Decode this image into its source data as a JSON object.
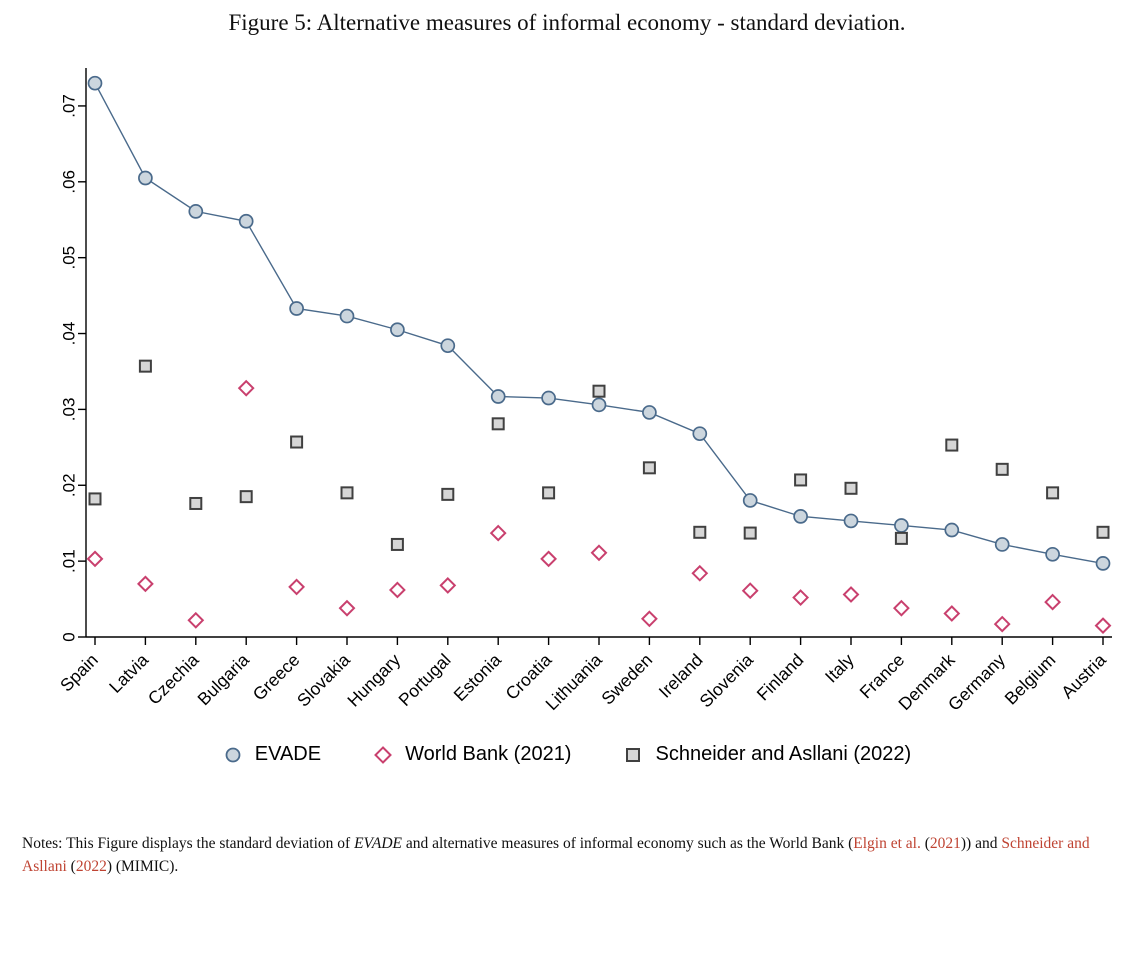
{
  "title": "Figure 5: Alternative measures of informal economy - standard deviation.",
  "colors": {
    "citation": "#bf4332",
    "axis": "#000000",
    "evade_line": "#4a6a8b",
    "evade_fill": "#ccd6de",
    "worldbank_stroke": "#c9406e",
    "worldbank_fill": "#ffffff",
    "schneider_stroke": "#404040",
    "schneider_fill": "#d6d6d6"
  },
  "chart_data": {
    "type": "line",
    "title": "",
    "xlabel": "",
    "ylabel": "",
    "grid": false,
    "legend_position": "bottom",
    "ylim": [
      0,
      0.075
    ],
    "yticks": [
      0,
      0.01,
      0.02,
      0.03,
      0.04,
      0.05,
      0.06,
      0.07
    ],
    "ytick_labels": [
      "0",
      ".01",
      ".02",
      ".03",
      ".04",
      ".05",
      ".06",
      ".07"
    ],
    "categories": [
      "Spain",
      "Latvia",
      "Czechia",
      "Bulgaria",
      "Greece",
      "Slovakia",
      "Hungary",
      "Portugal",
      "Estonia",
      "Croatia",
      "Lithuania",
      "Sweden",
      "Ireland",
      "Slovenia",
      "Finland",
      "Italy",
      "France",
      "Denmark",
      "Germany",
      "Belgium",
      "Austria"
    ],
    "series": [
      {
        "name": "EVADE",
        "marker": "circle",
        "line": true,
        "color": "#4a6a8b",
        "fill": "#ccd6de",
        "values": [
          0.073,
          0.0605,
          0.0561,
          0.0548,
          0.0433,
          0.0423,
          0.0405,
          0.0384,
          0.0317,
          0.0315,
          0.0306,
          0.0296,
          0.0268,
          0.018,
          0.0159,
          0.0153,
          0.0147,
          0.0141,
          0.0122,
          0.0109,
          0.0097
        ]
      },
      {
        "name": "World Bank (2021)",
        "marker": "diamond",
        "line": false,
        "color": "#c9406e",
        "fill": "#ffffff",
        "values": [
          0.0103,
          0.007,
          0.0022,
          0.0328,
          0.0066,
          0.0038,
          0.0062,
          0.0068,
          0.0137,
          0.0103,
          0.0111,
          0.0024,
          0.0084,
          0.0061,
          0.0052,
          0.0056,
          0.0038,
          0.0031,
          0.0017,
          0.0046,
          0.0015
        ]
      },
      {
        "name": "Schneider and Asllani (2022)",
        "marker": "square",
        "line": false,
        "color": "#404040",
        "fill": "#d6d6d6",
        "values": [
          0.0182,
          0.0357,
          0.0176,
          0.0185,
          0.0257,
          0.019,
          0.0122,
          0.0188,
          0.0281,
          0.019,
          0.0324,
          0.0223,
          0.0138,
          0.0137,
          0.0207,
          0.0196,
          0.013,
          0.0253,
          0.0221,
          0.019,
          0.0138
        ]
      }
    ]
  },
  "notes": {
    "segments": [
      {
        "text": "Notes: This Figure displays the standard deviation of ",
        "style": "normal"
      },
      {
        "text": "EVADE",
        "style": "italic"
      },
      {
        "text": " and alternative measures of informal economy such as the World Bank (",
        "style": "normal"
      },
      {
        "text": "Elgin et al.",
        "style": "link"
      },
      {
        "text": " (",
        "style": "normal"
      },
      {
        "text": "2021",
        "style": "link"
      },
      {
        "text": ")) and ",
        "style": "normal"
      },
      {
        "text": "Schneider and Asllani",
        "style": "link"
      },
      {
        "text": " (",
        "style": "normal"
      },
      {
        "text": "2022",
        "style": "link"
      },
      {
        "text": ") (MIMIC).",
        "style": "normal"
      }
    ]
  }
}
